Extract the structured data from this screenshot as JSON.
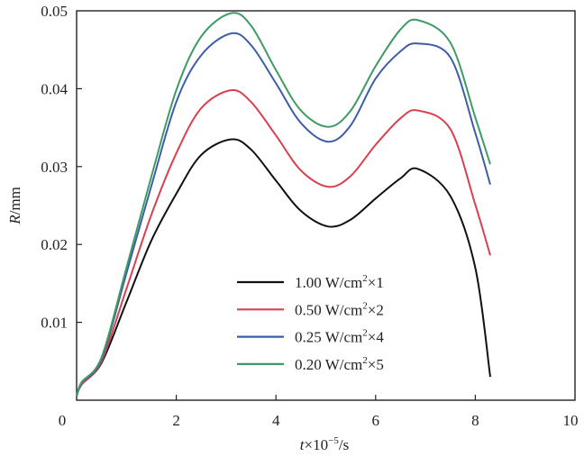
{
  "chart_data": {
    "type": "line",
    "title": "",
    "xlabel": "t×10⁻⁵/s",
    "xlabel_parts": {
      "var": "t",
      "rest": "×10",
      "sup": "−5",
      "unit": "/s"
    },
    "ylabel": "R/mm",
    "ylabel_parts": {
      "var": "R",
      "unit": "/mm"
    },
    "xlim": [
      0,
      10
    ],
    "ylim": [
      0,
      0.05
    ],
    "xticks": [
      0,
      2,
      4,
      6,
      8,
      10
    ],
    "xtick_labels": [
      "0",
      "2",
      "4",
      "6",
      "8",
      "10"
    ],
    "yticks": [
      0.01,
      0.02,
      0.03,
      0.04,
      0.05
    ],
    "ytick_labels": [
      "0.01",
      "0.02",
      "0.03",
      "0.04",
      "0.05"
    ],
    "grid": false,
    "legend_position": "center-bottom",
    "x": [
      0.0,
      0.1,
      0.5,
      1.0,
      1.5,
      2.0,
      2.5,
      3.1,
      3.5,
      4.0,
      4.5,
      5.05,
      5.5,
      6.0,
      6.5,
      6.85,
      7.5,
      8.0,
      8.3
    ],
    "series": [
      {
        "name": "1.00 W/cm²×1",
        "label_parts": {
          "main": "1.00 W/cm",
          "sup": "2",
          "tail": "×1"
        },
        "color": "#111111",
        "values": [
          0.0005,
          0.002,
          0.0048,
          0.0126,
          0.0205,
          0.0265,
          0.0315,
          0.0335,
          0.0322,
          0.0282,
          0.0243,
          0.0223,
          0.0232,
          0.0259,
          0.0285,
          0.0297,
          0.0262,
          0.017,
          0.003
        ]
      },
      {
        "name": "0.50 W/cm²×2",
        "label_parts": {
          "main": "0.50 W/cm",
          "sup": "2",
          "tail": "×2"
        },
        "color": "#d9404f",
        "values": [
          0.0005,
          0.002,
          0.005,
          0.0143,
          0.0238,
          0.0317,
          0.0375,
          0.0398,
          0.0383,
          0.034,
          0.0295,
          0.0274,
          0.0288,
          0.0328,
          0.0362,
          0.0372,
          0.0348,
          0.0251,
          0.0186
        ]
      },
      {
        "name": "0.25 W/cm²×4",
        "label_parts": {
          "main": "0.25 W/cm",
          "sup": "2",
          "tail": "×4"
        },
        "color": "#3c5ea9",
        "values": [
          0.0005,
          0.0022,
          0.0053,
          0.0163,
          0.0275,
          0.0383,
          0.0443,
          0.0471,
          0.0456,
          0.0407,
          0.0356,
          0.0332,
          0.0353,
          0.0413,
          0.0448,
          0.0458,
          0.044,
          0.0343,
          0.0277
        ]
      },
      {
        "name": "0.20 W/cm²×5",
        "label_parts": {
          "main": "0.20 W/cm",
          "sup": "2",
          "tail": "×5"
        },
        "color": "#3f9b63",
        "values": [
          0.0005,
          0.0023,
          0.0055,
          0.017,
          0.0287,
          0.0398,
          0.0467,
          0.0497,
          0.0481,
          0.0424,
          0.0372,
          0.0351,
          0.0372,
          0.0429,
          0.0476,
          0.0488,
          0.0459,
          0.0363,
          0.0303
        ]
      }
    ]
  }
}
